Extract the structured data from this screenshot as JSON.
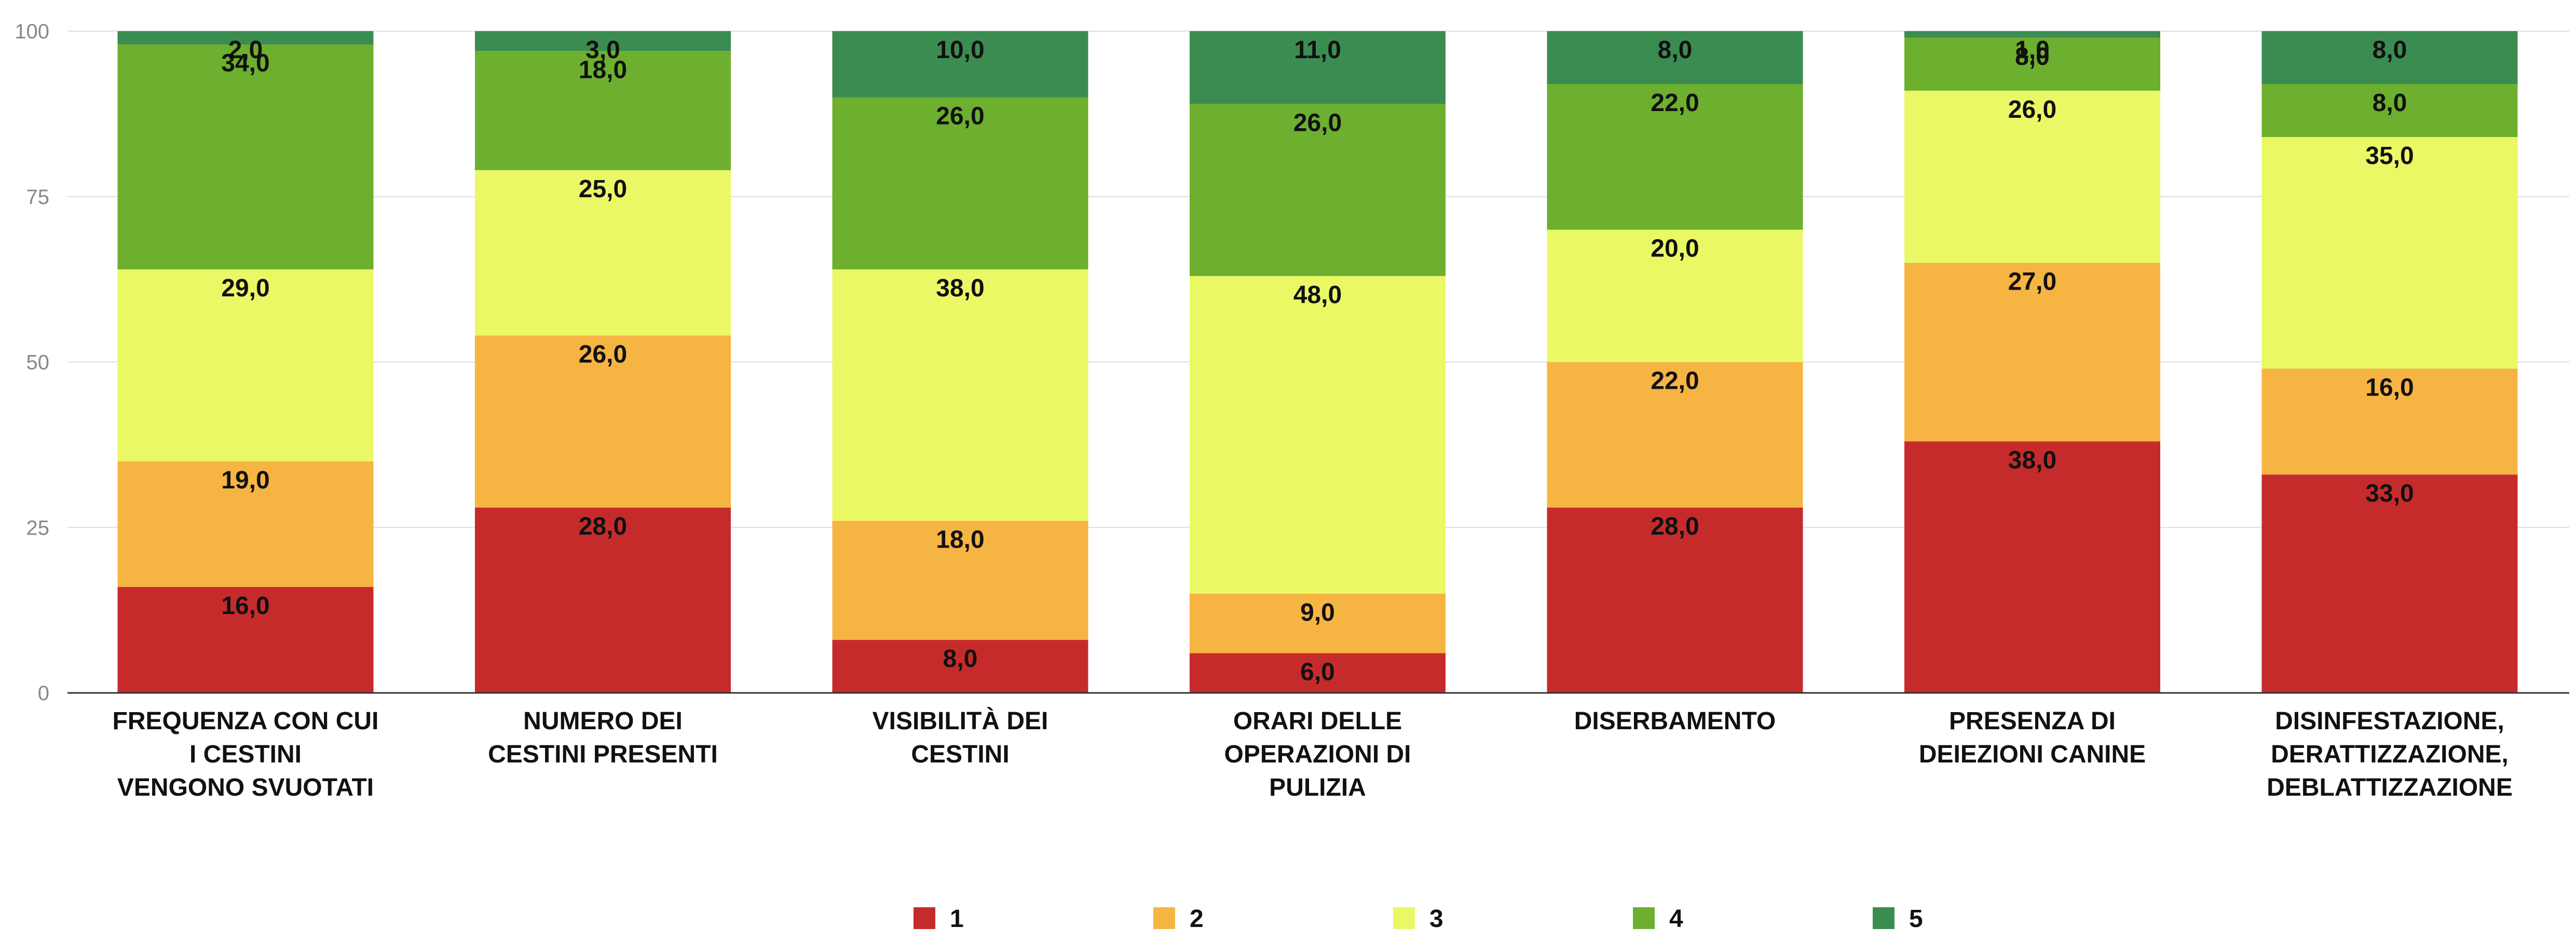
{
  "chart_data": {
    "type": "bar",
    "stacked": true,
    "title": "",
    "xlabel": "",
    "ylabel": "",
    "ylim": [
      0,
      100
    ],
    "yticks": [
      0,
      25,
      50,
      75,
      100
    ],
    "grid": true,
    "legend_position": "bottom",
    "categories": [
      [
        "FREQUENZA CON CUI",
        "I CESTINI",
        "VENGONO SVUOTATI"
      ],
      [
        "NUMERO DEI",
        "CESTINI PRESENTI"
      ],
      [
        "VISIBILITÀ DEI",
        "CESTINI"
      ],
      [
        "ORARI DELLE",
        "OPERAZIONI DI",
        "PULIZIA"
      ],
      [
        "DISERBAMENTO"
      ],
      [
        "PRESENZA DI",
        "DEIEZIONI CANINE"
      ],
      [
        "DISINFESTAZIONE,",
        "DERATTIZZAZIONE,",
        "DEBLATTIZZAZIONE"
      ]
    ],
    "series": [
      {
        "name": "1",
        "color": "#c62b2b",
        "values": [
          16.0,
          28.0,
          8.0,
          6.0,
          28.0,
          38.0,
          33.0
        ],
        "labels": [
          "16,0",
          "28,0",
          "8,0",
          "6,0",
          "28,0",
          "38,0",
          "33,0"
        ]
      },
      {
        "name": "2",
        "color": "#f6b443",
        "values": [
          19.0,
          26.0,
          18.0,
          9.0,
          22.0,
          27.0,
          16.0
        ],
        "labels": [
          "19,0",
          "26,0",
          "18,0",
          "9,0",
          "22,0",
          "27,0",
          "16,0"
        ]
      },
      {
        "name": "3",
        "color": "#eaf866",
        "values": [
          29.0,
          25.0,
          38.0,
          48.0,
          20.0,
          26.0,
          35.0
        ],
        "labels": [
          "29,0",
          "25,0",
          "38,0",
          "48,0",
          "20,0",
          "26,0",
          "35,0"
        ]
      },
      {
        "name": "4",
        "color": "#6daf2f",
        "values": [
          34.0,
          18.0,
          26.0,
          26.0,
          22.0,
          8.0,
          8.0
        ],
        "labels": [
          "34,0",
          "18,0",
          "26,0",
          "26,0",
          "22,0",
          "8,0",
          "8,0"
        ]
      },
      {
        "name": "5",
        "color": "#3b8c50",
        "values": [
          2.0,
          3.0,
          10.0,
          11.0,
          8.0,
          1.0,
          8.0
        ],
        "labels": [
          "2,0",
          "3,0",
          "10,0",
          "11,0",
          "8,0",
          "1,0",
          "8,0"
        ]
      }
    ]
  }
}
